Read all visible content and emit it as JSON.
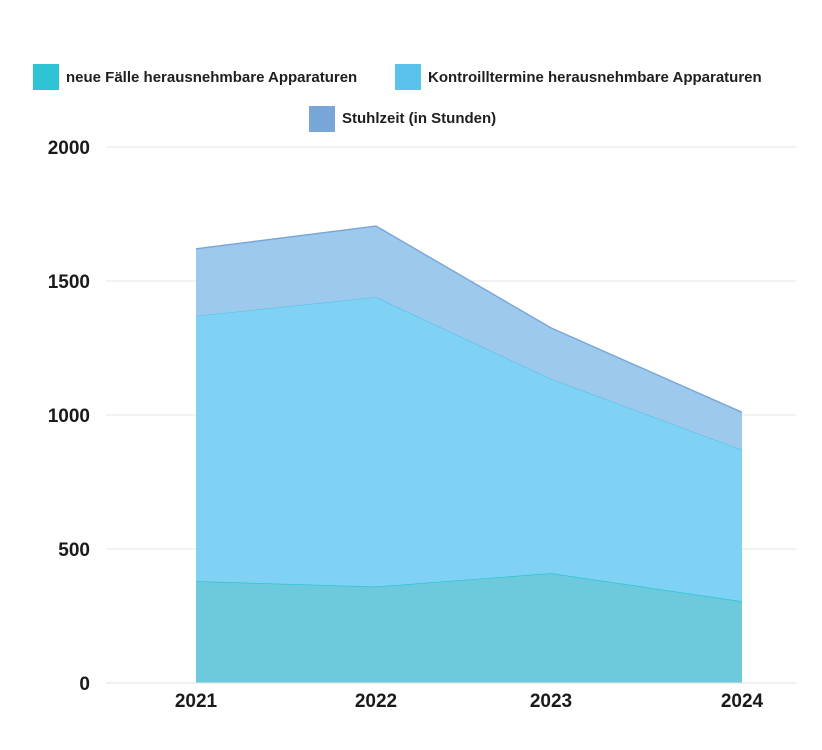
{
  "chart_data": {
    "type": "area",
    "stacked": true,
    "categories": [
      "2021",
      "2022",
      "2023",
      "2024"
    ],
    "series": [
      {
        "name": "neue Fälle herausnehmbare Apparaturen",
        "values": [
          380,
          360,
          410,
          305
        ],
        "color": "#2ec4d6",
        "fill": "#6ccadc"
      },
      {
        "name": "Kontroilltermine herausnehmbare Apparaturen",
        "values": [
          990,
          1080,
          725,
          565
        ],
        "color": "#5bc2ec",
        "fill": "#80d2f5"
      },
      {
        "name": "Stuhlzeit (in Stunden)",
        "values": [
          250,
          265,
          190,
          140
        ],
        "color": "#78a6d8",
        "fill": "#9cc9ec"
      }
    ],
    "xlabel": "",
    "ylabel": "",
    "ylim": [
      0,
      2000
    ],
    "yticks": [
      "0",
      "500",
      "1000",
      "1500",
      "2000"
    ],
    "grid": true,
    "legend_position": "top"
  }
}
